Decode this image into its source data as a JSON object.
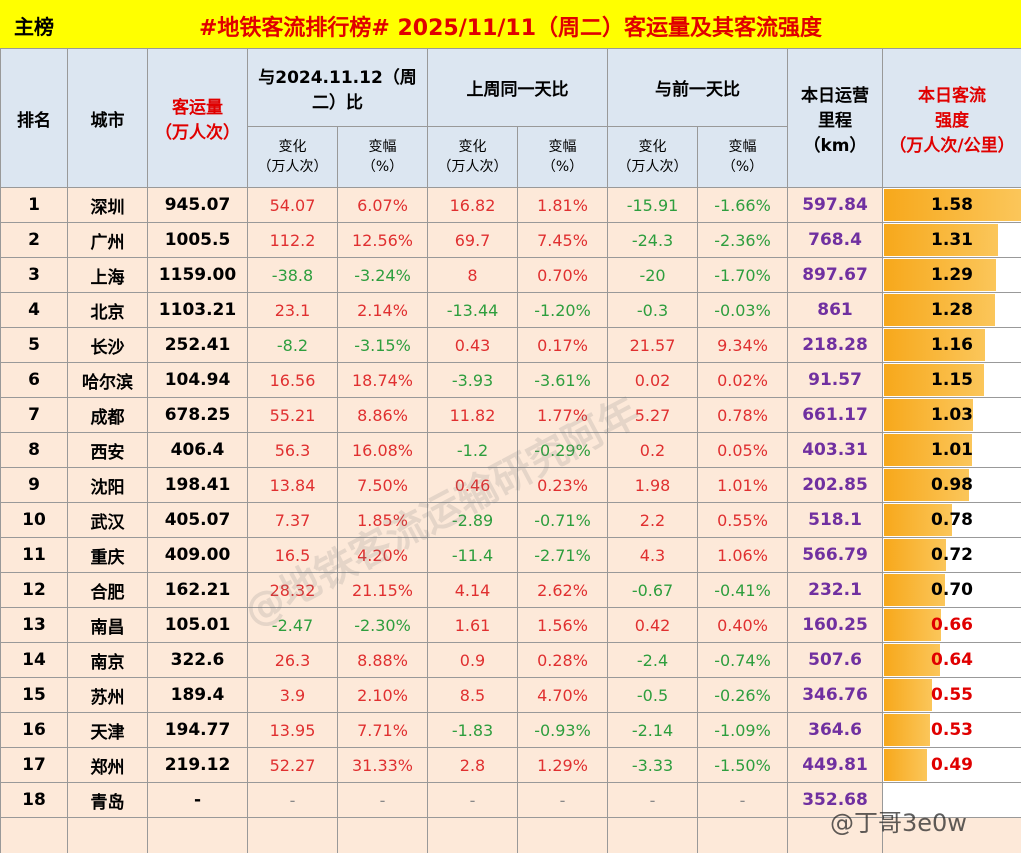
{
  "header": {
    "tag": "主榜",
    "title": "#地铁客流排行榜# 2025/11/11（周二）客运量及其客流强度"
  },
  "table": {
    "head": {
      "rank": "排名",
      "city": "城市",
      "volume": "客运量\n（万人次）",
      "groups": [
        "与2024.11.12（周二）比",
        "上周同一天比",
        "与前一天比"
      ],
      "sub": [
        "变化\n（万人次）",
        "变幅\n（%）",
        "变化\n（万人次）",
        "变幅\n（%）",
        "变化\n（万人次）",
        "变幅\n（%）"
      ],
      "mileage": "本日运营\n里程\n（km）",
      "intensity": "本日客流\n强度\n（万人次/公里）"
    },
    "rows": [
      [
        "1",
        "深圳",
        "945.07",
        "54.07",
        "6.07%",
        "16.82",
        "1.81%",
        "-15.91",
        "-1.66%",
        "597.84",
        "1.58"
      ],
      [
        "2",
        "广州",
        "1005.5",
        "112.2",
        "12.56%",
        "69.7",
        "7.45%",
        "-24.3",
        "-2.36%",
        "768.4",
        "1.31"
      ],
      [
        "3",
        "上海",
        "1159.00",
        "-38.8",
        "-3.24%",
        "8",
        "0.70%",
        "-20",
        "-1.70%",
        "897.67",
        "1.29"
      ],
      [
        "4",
        "北京",
        "1103.21",
        "23.1",
        "2.14%",
        "-13.44",
        "-1.20%",
        "-0.3",
        "-0.03%",
        "861",
        "1.28"
      ],
      [
        "5",
        "长沙",
        "252.41",
        "-8.2",
        "-3.15%",
        "0.43",
        "0.17%",
        "21.57",
        "9.34%",
        "218.28",
        "1.16"
      ],
      [
        "6",
        "哈尔滨",
        "104.94",
        "16.56",
        "18.74%",
        "-3.93",
        "-3.61%",
        "0.02",
        "0.02%",
        "91.57",
        "1.15"
      ],
      [
        "7",
        "成都",
        "678.25",
        "55.21",
        "8.86%",
        "11.82",
        "1.77%",
        "5.27",
        "0.78%",
        "661.17",
        "1.03"
      ],
      [
        "8",
        "西安",
        "406.4",
        "56.3",
        "16.08%",
        "-1.2",
        "-0.29%",
        "0.2",
        "0.05%",
        "403.31",
        "1.01"
      ],
      [
        "9",
        "沈阳",
        "198.41",
        "13.84",
        "7.50%",
        "0.46",
        "0.23%",
        "1.98",
        "1.01%",
        "202.85",
        "0.98"
      ],
      [
        "10",
        "武汉",
        "405.07",
        "7.37",
        "1.85%",
        "-2.89",
        "-0.71%",
        "2.2",
        "0.55%",
        "518.1",
        "0.78"
      ],
      [
        "11",
        "重庆",
        "409.00",
        "16.5",
        "4.20%",
        "-11.4",
        "-2.71%",
        "4.3",
        "1.06%",
        "566.79",
        "0.72"
      ],
      [
        "12",
        "合肥",
        "162.21",
        "28.32",
        "21.15%",
        "4.14",
        "2.62%",
        "-0.67",
        "-0.41%",
        "232.1",
        "0.70"
      ],
      [
        "13",
        "南昌",
        "105.01",
        "-2.47",
        "-2.30%",
        "1.61",
        "1.56%",
        "0.42",
        "0.40%",
        "160.25",
        "0.66"
      ],
      [
        "14",
        "南京",
        "322.6",
        "26.3",
        "8.88%",
        "0.9",
        "0.28%",
        "-2.4",
        "-0.74%",
        "507.6",
        "0.64"
      ],
      [
        "15",
        "苏州",
        "189.4",
        "3.9",
        "2.10%",
        "8.5",
        "4.70%",
        "-0.5",
        "-0.26%",
        "346.76",
        "0.55"
      ],
      [
        "16",
        "天津",
        "194.77",
        "13.95",
        "7.71%",
        "-1.83",
        "-0.93%",
        "-2.14",
        "-1.09%",
        "364.6",
        "0.53"
      ],
      [
        "17",
        "郑州",
        "219.12",
        "52.27",
        "31.33%",
        "2.8",
        "1.29%",
        "-3.33",
        "-1.50%",
        "449.81",
        "0.49"
      ],
      [
        "18",
        "青岛",
        "-",
        "-",
        "-",
        "-",
        "-",
        "-",
        "-",
        "352.68",
        null
      ]
    ],
    "intensity_colors": [
      "#000000",
      "#000000",
      "#000000",
      "#000000",
      "#000000",
      "#000000",
      "#000000",
      "#000000",
      "#000000",
      "#000000",
      "#000000",
      "#000000",
      "#e00000",
      "#e00000",
      "#e00000",
      "#e00000",
      "#e00000",
      null
    ]
  },
  "watermarks": [
    "@地铁客流运输研究阿年",
    "@丁哥3e0w"
  ]
}
